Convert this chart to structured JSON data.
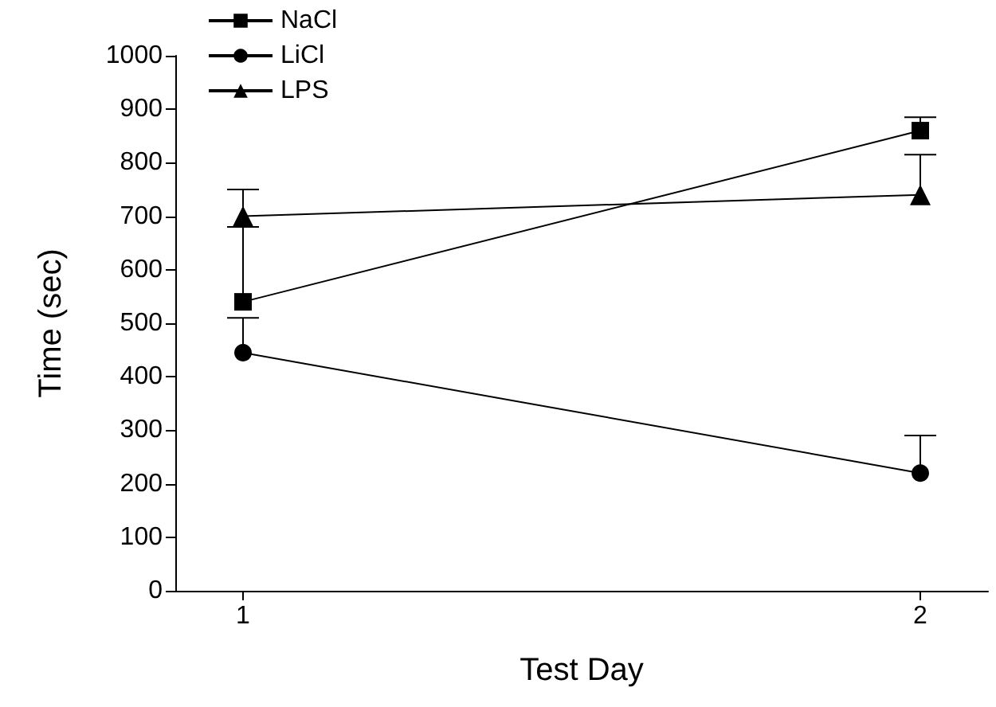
{
  "chart_data": {
    "type": "line",
    "xlabel": "Test Day",
    "ylabel": "Time (sec)",
    "x": [
      1,
      2
    ],
    "xlim": [
      0.9,
      2.1
    ],
    "xticks": [
      1,
      2
    ],
    "ylim": [
      0,
      1000
    ],
    "yticks": [
      0,
      100,
      200,
      300,
      400,
      500,
      600,
      700,
      800,
      900,
      1000
    ],
    "grid": false,
    "legend": "top left",
    "series": [
      {
        "name": "NaCl",
        "color": "#000000",
        "marker": "square",
        "values": [
          540,
          860
        ],
        "errors": [
          [
            540,
            680
          ],
          [
            860,
            885
          ]
        ]
      },
      {
        "name": "LiCl",
        "color": "#000000",
        "marker": "circle",
        "values": [
          445,
          220
        ],
        "errors": [
          [
            445,
            510
          ],
          [
            220,
            290
          ]
        ]
      },
      {
        "name": "LPS",
        "color": "#000000",
        "marker": "triangle",
        "values": [
          700,
          740
        ],
        "errors": [
          [
            700,
            750
          ],
          [
            740,
            815
          ]
        ]
      }
    ]
  }
}
